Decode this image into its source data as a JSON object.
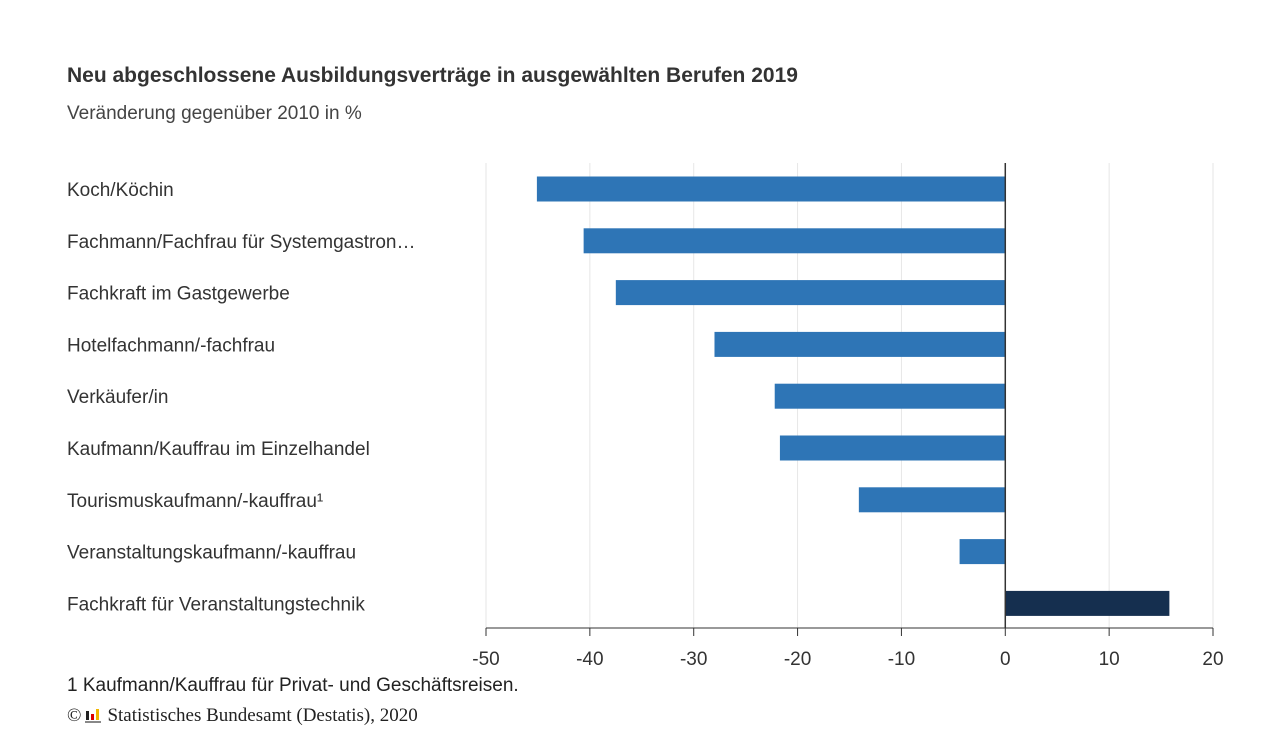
{
  "chart_data": {
    "type": "bar",
    "orientation": "horizontal",
    "title": "Neu abgeschlossene Ausbildungsverträge in ausgewählten Berufen 2019",
    "subtitle": "Veränderung gegenüber 2010 in %",
    "categories": [
      "Koch/Köchin",
      "Fachmann/Fachfrau für Systemgastron…",
      "Fachkraft im Gastgewerbe",
      "Hotelfachmann/-fachfrau",
      "Verkäufer/in",
      "Kaufmann/Kauffrau im Einzelhandel",
      "Tourismuskaufmann/-kauffrau¹",
      "Veranstaltungskaufmann/-kauffrau",
      "Fachkraft für Veranstaltungstechnik"
    ],
    "values": [
      -45.1,
      -40.6,
      -37.5,
      -28.0,
      -22.2,
      -21.7,
      -14.1,
      -4.4,
      15.8
    ],
    "xlim": [
      -50,
      20
    ],
    "xticks": [
      -50,
      -40,
      -30,
      -20,
      -10,
      0,
      10,
      20
    ],
    "xtick_labels": [
      "-50",
      "-40",
      "-30",
      "-20",
      "-10",
      "0",
      "10",
      "20"
    ],
    "grid": true,
    "colors": {
      "negative": "#2e75b6",
      "positive": "#152f4f"
    }
  },
  "footnote": "1 Kaufmann/Kauffrau für Privat- und Geschäftsreisen.",
  "source": {
    "copyright": "©",
    "text": "Statistisches Bundesamt (Destatis), 2020"
  }
}
